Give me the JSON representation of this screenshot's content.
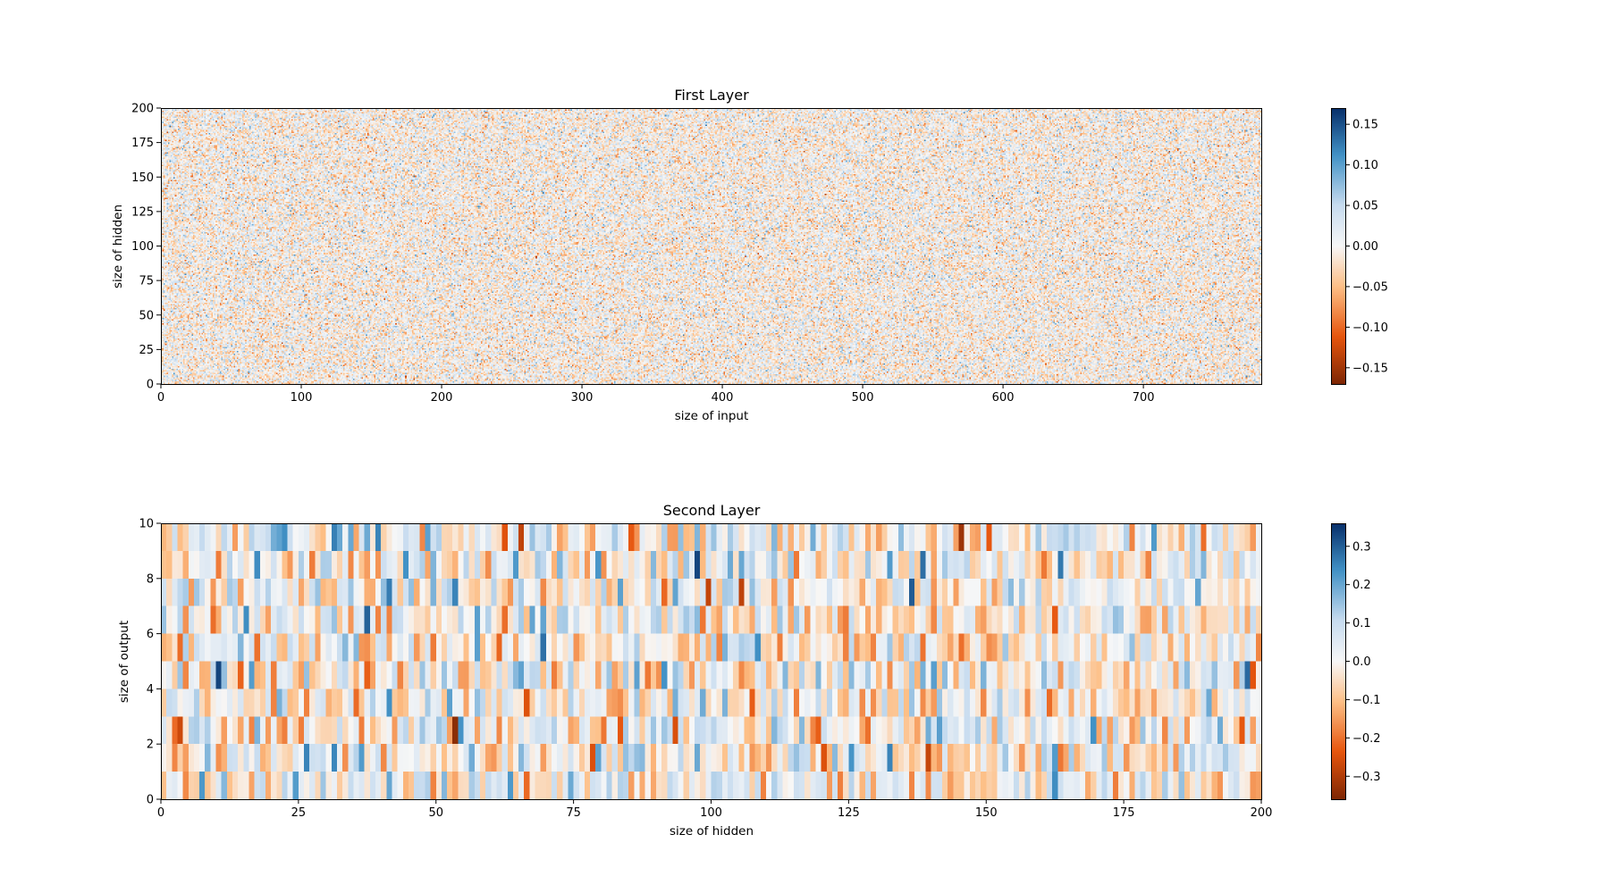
{
  "chart_data": [
    {
      "type": "heatmap",
      "title": "First Layer",
      "xlabel": "size of input",
      "ylabel": "size of hidden",
      "shape": {
        "rows": 200,
        "cols": 784
      },
      "xlim": [
        0,
        784
      ],
      "ylim": [
        0,
        200
      ],
      "x_ticks": [
        0,
        100,
        200,
        300,
        400,
        500,
        600,
        700
      ],
      "y_ticks": [
        0,
        25,
        50,
        75,
        100,
        125,
        150,
        175,
        200
      ],
      "colorbar": {
        "min": -0.17,
        "max": 0.17,
        "ticks": [
          -0.15,
          -0.1,
          -0.05,
          0.0,
          0.05,
          0.1,
          0.15
        ],
        "tick_labels": [
          "−0.15",
          "−0.10",
          "−0.05",
          "0.00",
          "0.05",
          "0.10",
          "0.15"
        ]
      },
      "colormap": "RdBu-orange-diverging",
      "value_distribution": {
        "mean": 0.0,
        "std": 0.035,
        "clip": [
          -0.17,
          0.17
        ]
      },
      "grid": false
    },
    {
      "type": "heatmap",
      "title": "Second Layer",
      "xlabel": "size of hidden",
      "ylabel": "size of output",
      "shape": {
        "rows": 10,
        "cols": 200
      },
      "xlim": [
        0,
        200
      ],
      "ylim": [
        0,
        10
      ],
      "x_ticks": [
        0,
        25,
        50,
        75,
        100,
        125,
        150,
        175,
        200
      ],
      "y_ticks": [
        0,
        2,
        4,
        6,
        8,
        10
      ],
      "colorbar": {
        "min": -0.36,
        "max": 0.36,
        "ticks": [
          -0.3,
          -0.2,
          -0.1,
          0.0,
          0.1,
          0.2,
          0.3
        ],
        "tick_labels": [
          "−0.3",
          "−0.2",
          "−0.1",
          "0.0",
          "0.1",
          "0.2",
          "0.3"
        ]
      },
      "colormap": "RdBu-orange-diverging",
      "value_distribution": {
        "mean": 0.0,
        "std": 0.1,
        "clip": [
          -0.36,
          0.36
        ]
      },
      "grid": false
    }
  ],
  "colors": {
    "negative_extreme": "#7f2704",
    "negative": "#e6550d",
    "negative_light": "#fdbe85",
    "neutral": "#f7f7f7",
    "positive_light": "#c6dbef",
    "positive": "#4292c6",
    "positive_extreme": "#08306b"
  }
}
